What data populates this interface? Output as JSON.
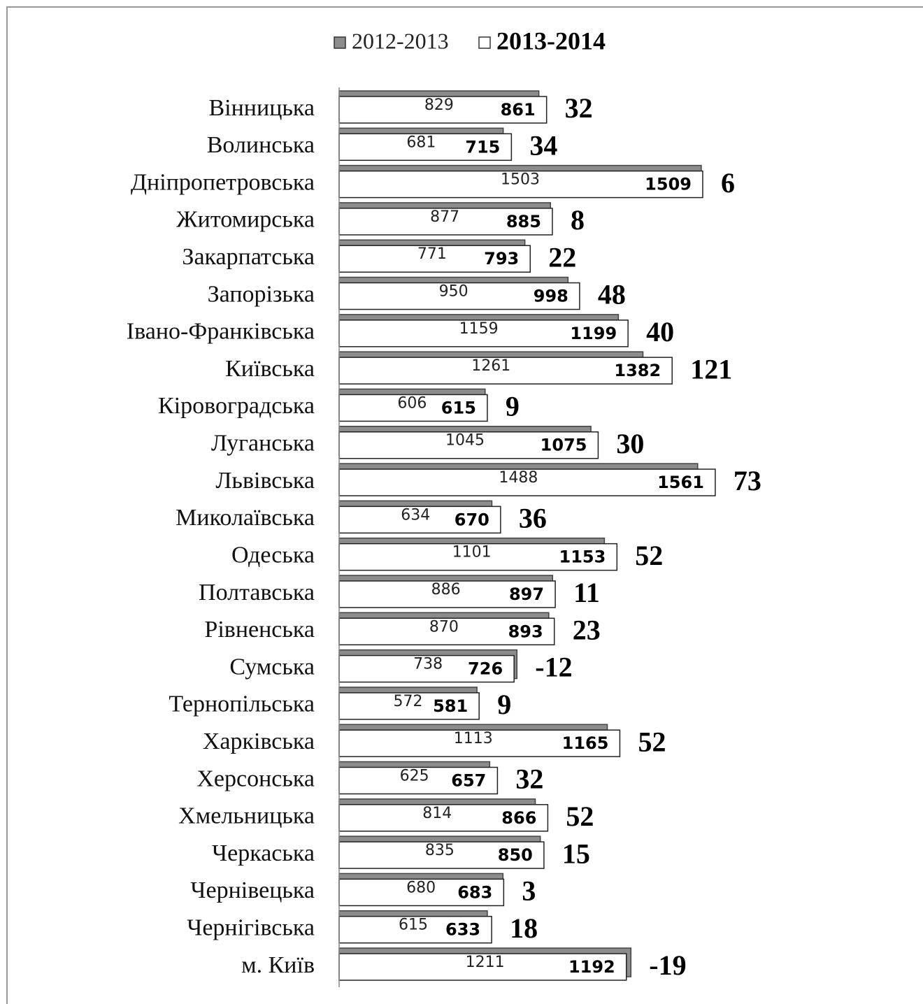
{
  "chart_data": {
    "type": "bar",
    "orientation": "horizontal",
    "categories": [
      "Вінницька",
      "Волинська",
      "Дніпропетровська",
      "Житомирська",
      "Закарпатська",
      "Запорізька",
      "Івано-Франківська",
      "Київська",
      "Кіровоградська",
      "Луганська",
      "Львівська",
      "Миколаївська",
      "Одеська",
      "Полтавська",
      "Рівненська",
      "Сумська",
      "Тернопільська",
      "Харківська",
      "Херсонська",
      "Хмельницька",
      "Черкаська",
      "Чернівецька",
      "Чернігівська",
      "м. Київ"
    ],
    "series": [
      {
        "name": "2012-2013",
        "color": "#8c8c8c",
        "values": [
          829,
          681,
          1503,
          877,
          771,
          950,
          1159,
          1261,
          606,
          1045,
          1488,
          634,
          1101,
          886,
          870,
          738,
          572,
          1113,
          625,
          814,
          835,
          680,
          615,
          1211
        ]
      },
      {
        "name": "2013-2014",
        "color": "#ffffff",
        "values": [
          861,
          715,
          1509,
          885,
          793,
          998,
          1199,
          1382,
          615,
          1075,
          1561,
          670,
          1153,
          897,
          893,
          726,
          581,
          1165,
          657,
          866,
          850,
          683,
          633,
          1192
        ]
      }
    ],
    "differences": [
      32,
      34,
      6,
      8,
      22,
      48,
      40,
      121,
      9,
      30,
      73,
      36,
      52,
      11,
      23,
      -12,
      9,
      52,
      32,
      52,
      15,
      3,
      18,
      -19
    ],
    "xlim": [
      0,
      2400
    ],
    "legend": "top"
  }
}
